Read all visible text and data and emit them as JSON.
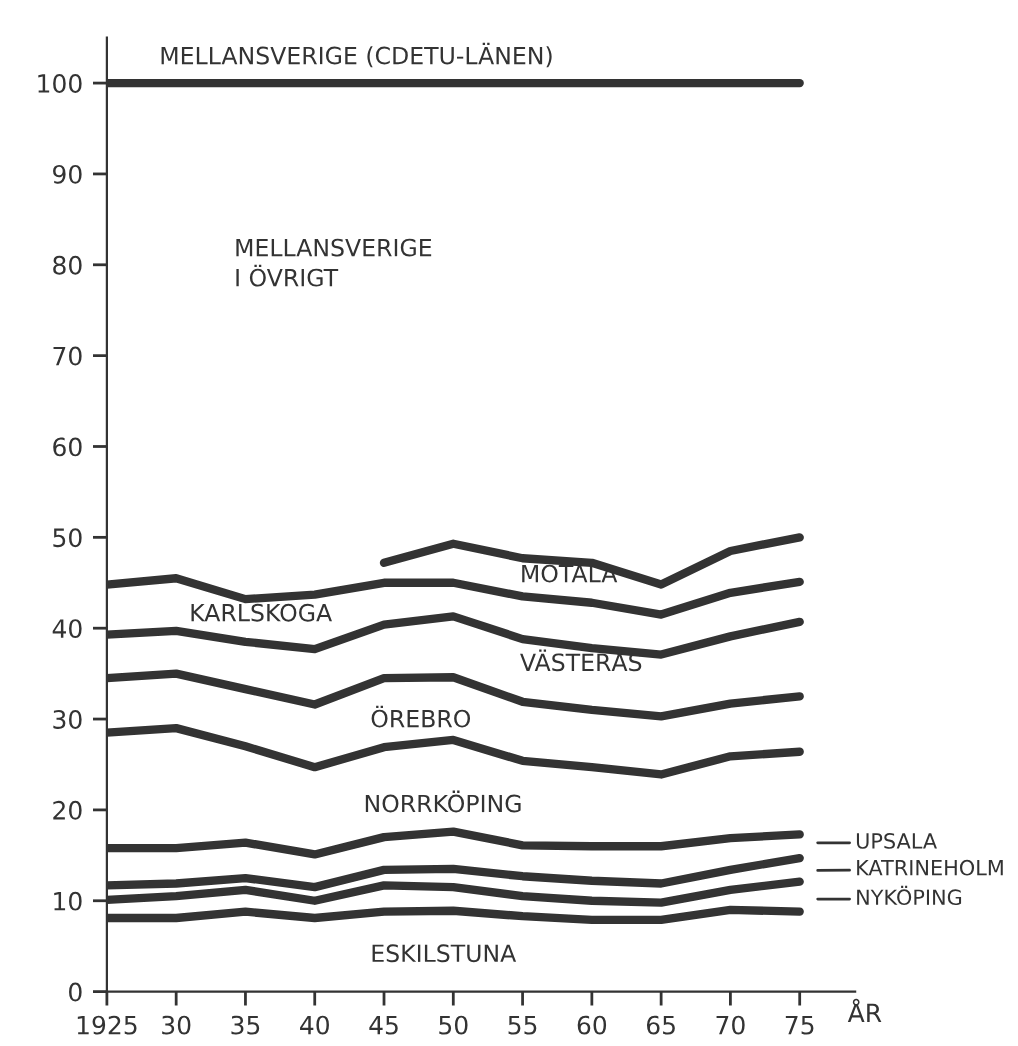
{
  "chart_data": {
    "type": "line",
    "xlabel": "ÅR",
    "x": [
      1925,
      1930,
      1935,
      1940,
      1945,
      1950,
      1955,
      1960,
      1965,
      1970,
      1975
    ],
    "series": [
      {
        "color": "#333333",
        "values": [
          100,
          100,
          100,
          100,
          100,
          100,
          100,
          100,
          100,
          100,
          100
        ]
      },
      {
        "color": "#333333",
        "x": [
          1945,
          1950,
          1955,
          1960,
          1965,
          1970,
          1975
        ],
        "values": [
          47.2,
          49.3,
          47.7,
          47.2,
          44.8,
          48.5,
          50
        ]
      },
      {
        "color": "#333333",
        "values": [
          44.8,
          45.5,
          43.2,
          43.7,
          45,
          45,
          43.5,
          42.8,
          41.5,
          43.9,
          45.1
        ]
      },
      {
        "color": "#333333",
        "values": [
          39.3,
          39.7,
          38.5,
          37.7,
          40.4,
          41.3,
          38.8,
          37.8,
          37.1,
          39.1,
          40.7
        ]
      },
      {
        "color": "#333333",
        "values": [
          34.5,
          35,
          33.3,
          31.6,
          34.5,
          34.6,
          31.9,
          31,
          30.3,
          31.7,
          32.5
        ]
      },
      {
        "color": "#333333",
        "values": [
          28.5,
          29,
          27,
          24.7,
          26.9,
          27.7,
          25.4,
          24.7,
          23.9,
          25.9,
          26.4
        ]
      },
      {
        "color": "#333333",
        "values": [
          15.8,
          15.8,
          16.4,
          15.1,
          17,
          17.6,
          16.1,
          16,
          16,
          16.9,
          17.3
        ]
      },
      {
        "color": "#333333",
        "values": [
          11.7,
          11.9,
          12.5,
          11.5,
          13.4,
          13.5,
          12.7,
          12.2,
          11.9,
          13.4,
          14.7
        ]
      },
      {
        "color": "#333333",
        "values": [
          10.1,
          10.5,
          11.2,
          10,
          11.7,
          11.5,
          10.5,
          10,
          9.8,
          11.2,
          12.1
        ]
      },
      {
        "color": "#333333",
        "values": [
          8.1,
          8.1,
          8.8,
          8.1,
          8.8,
          8.9,
          8.3,
          7.9,
          7.9,
          9,
          8.8
        ]
      }
    ],
    "xlim": [
      1925,
      1979
    ],
    "ylim": [
      0,
      105
    ],
    "xticks": [
      {
        "value": 1925,
        "label": "1925"
      },
      {
        "value": 1930,
        "label": "30"
      },
      {
        "value": 1935,
        "label": "35"
      },
      {
        "value": 1940,
        "label": "40"
      },
      {
        "value": 1945,
        "label": "45"
      },
      {
        "value": 1950,
        "label": "50"
      },
      {
        "value": 1955,
        "label": "55"
      },
      {
        "value": 1960,
        "label": "60"
      },
      {
        "value": 1965,
        "label": "65"
      },
      {
        "value": 1970,
        "label": "70"
      },
      {
        "value": 1975,
        "label": "75"
      }
    ],
    "yticks": [
      0,
      10,
      20,
      30,
      40,
      50,
      60,
      70,
      80,
      90,
      100
    ],
    "grid": false,
    "legend": false,
    "marker": "none",
    "line_style": "solid",
    "annotations": [
      "MELLANSVERIGE (CDETU-LÄNEN)",
      "MELLANSVERIGE\nI ÖVRIGT",
      "MOTALA",
      "KARLSKOGA",
      "VÄSTERÅS",
      "ÖREBRO",
      "NORRKÖPING",
      "ESKILSTUNA",
      "UPSALA",
      "KATRINEHOLM",
      "NYKÖPING"
    ]
  }
}
